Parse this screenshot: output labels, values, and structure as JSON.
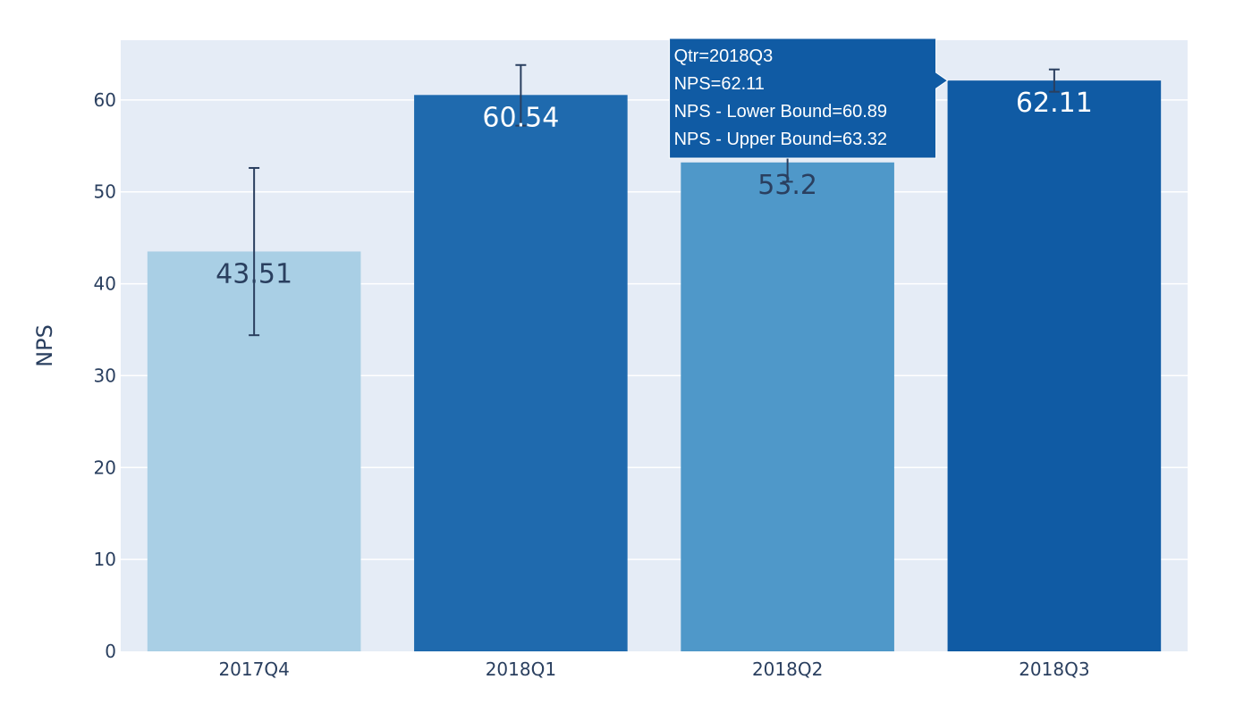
{
  "chart_data": {
    "type": "bar",
    "xlabel": "",
    "ylabel": "NPS",
    "ylim": [
      0,
      66.5
    ],
    "yticks": [
      0,
      10,
      20,
      30,
      40,
      50,
      60
    ],
    "categories": [
      "2017Q4",
      "2018Q1",
      "2018Q2",
      "2018Q3"
    ],
    "values": [
      43.51,
      60.54,
      53.2,
      62.11
    ],
    "value_labels": [
      "43.51",
      "60.54",
      "53.2",
      "62.11"
    ],
    "lower_bound": [
      34.4,
      57.2,
      51.1,
      60.89
    ],
    "upper_bound": [
      52.6,
      63.8,
      55.2,
      63.32
    ],
    "bar_colors": [
      "#a9cfe5",
      "#1f6aae",
      "#4f98c9",
      "#105ba4"
    ],
    "label_colors": [
      "#2a3f5f",
      "#ffffff",
      "#2a3f5f",
      "#ffffff"
    ],
    "error_bar_color": "#2a3f5f",
    "plot_background": "#e5ecf6",
    "grid": true,
    "legend": "none",
    "hover": {
      "category": "2018Q3",
      "lines": [
        "Qtr=2018Q3",
        "NPS=62.11",
        "NPS - Lower Bound=60.89",
        "NPS - Upper Bound=63.32"
      ],
      "background": "#105ba4"
    }
  }
}
